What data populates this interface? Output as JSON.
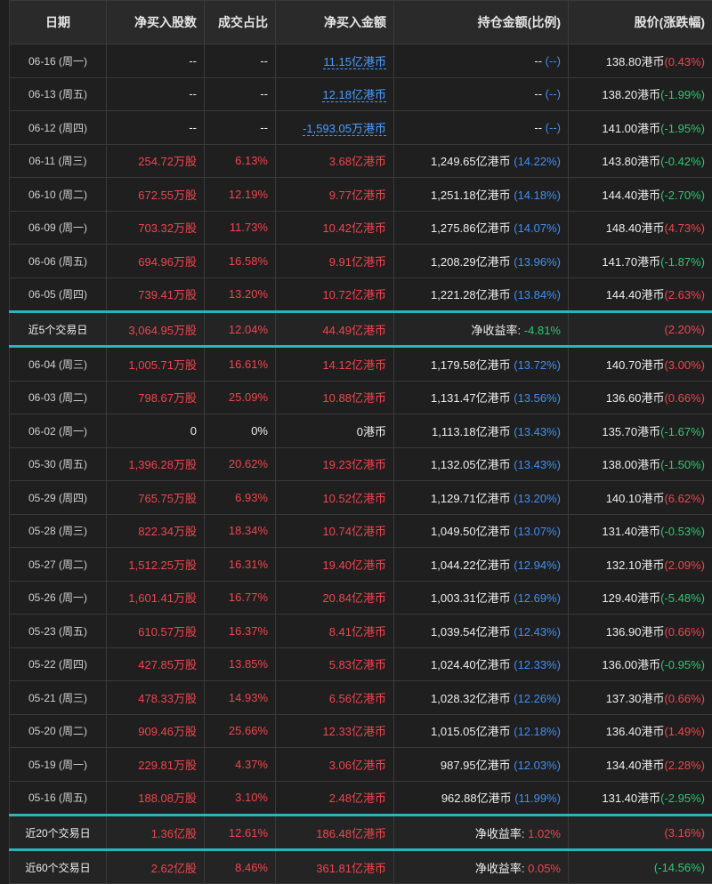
{
  "headers": [
    "日期",
    "净买入股数",
    "成交占比",
    "净买入金额",
    "持仓金额(比例)",
    "股价(涨跌幅)"
  ],
  "rows_a": [
    {
      "date": "06-16 (周一)",
      "shares": "--",
      "ratio": "--",
      "amount": "11.15亿港币",
      "amount_link": true,
      "hold": "--",
      "hold_pct": "(--)",
      "price": "138.80港币",
      "chg": "(0.43%)",
      "chg_dir": "up",
      "shares_dir": "none",
      "amount_dir": "none"
    },
    {
      "date": "06-13 (周五)",
      "shares": "--",
      "ratio": "--",
      "amount": "12.18亿港币",
      "amount_link": true,
      "hold": "--",
      "hold_pct": "(--)",
      "price": "138.20港币",
      "chg": "(-1.99%)",
      "chg_dir": "down",
      "shares_dir": "none",
      "amount_dir": "none"
    },
    {
      "date": "06-12 (周四)",
      "shares": "--",
      "ratio": "--",
      "amount": "-1,593.05万港币",
      "amount_link": true,
      "hold": "--",
      "hold_pct": "(--)",
      "price": "141.00港币",
      "chg": "(-1.95%)",
      "chg_dir": "down",
      "shares_dir": "none",
      "amount_dir": "none"
    },
    {
      "date": "06-11 (周三)",
      "shares": "254.72万股",
      "ratio": "6.13%",
      "amount": "3.68亿港币",
      "hold": "1,249.65亿港币",
      "hold_pct": "(14.22%)",
      "price": "143.80港币",
      "chg": "(-0.42%)",
      "chg_dir": "down",
      "shares_dir": "up",
      "amount_dir": "up"
    },
    {
      "date": "06-10 (周二)",
      "shares": "672.55万股",
      "ratio": "12.19%",
      "amount": "9.77亿港币",
      "hold": "1,251.18亿港币",
      "hold_pct": "(14.18%)",
      "price": "144.40港币",
      "chg": "(-2.70%)",
      "chg_dir": "down",
      "shares_dir": "up",
      "amount_dir": "up"
    },
    {
      "date": "06-09 (周一)",
      "shares": "703.32万股",
      "ratio": "11.73%",
      "amount": "10.42亿港币",
      "hold": "1,275.86亿港币",
      "hold_pct": "(14.07%)",
      "price": "148.40港币",
      "chg": "(4.73%)",
      "chg_dir": "up",
      "shares_dir": "up",
      "amount_dir": "up"
    },
    {
      "date": "06-06 (周五)",
      "shares": "694.96万股",
      "ratio": "16.58%",
      "amount": "9.91亿港币",
      "hold": "1,208.29亿港币",
      "hold_pct": "(13.96%)",
      "price": "141.70港币",
      "chg": "(-1.87%)",
      "chg_dir": "down",
      "shares_dir": "up",
      "amount_dir": "up"
    },
    {
      "date": "06-05 (周四)",
      "shares": "739.41万股",
      "ratio": "13.20%",
      "amount": "10.72亿港币",
      "hold": "1,221.28亿港币",
      "hold_pct": "(13.84%)",
      "price": "144.40港币",
      "chg": "(2.63%)",
      "chg_dir": "up",
      "shares_dir": "up",
      "amount_dir": "up"
    }
  ],
  "summary5": {
    "label": "近5个交易日",
    "shares": "3,064.95万股",
    "ratio": "12.04%",
    "amount": "44.49亿港币",
    "yield_label": "净收益率:",
    "yield": "-4.81%",
    "yield_dir": "down",
    "chg": "(2.20%)",
    "chg_dir": "up"
  },
  "rows_b": [
    {
      "date": "06-04 (周三)",
      "shares": "1,005.71万股",
      "ratio": "16.61%",
      "amount": "14.12亿港币",
      "hold": "1,179.58亿港币",
      "hold_pct": "(13.72%)",
      "price": "140.70港币",
      "chg": "(3.00%)",
      "chg_dir": "up",
      "shares_dir": "up",
      "amount_dir": "up"
    },
    {
      "date": "06-03 (周二)",
      "shares": "798.67万股",
      "ratio": "25.09%",
      "amount": "10.88亿港币",
      "hold": "1,131.47亿港币",
      "hold_pct": "(13.56%)",
      "price": "136.60港币",
      "chg": "(0.66%)",
      "chg_dir": "up",
      "shares_dir": "up",
      "amount_dir": "up"
    },
    {
      "date": "06-02 (周一)",
      "shares": "0",
      "ratio": "0%",
      "amount": "0港币",
      "hold": "1,113.18亿港币",
      "hold_pct": "(13.43%)",
      "price": "135.70港币",
      "chg": "(-1.67%)",
      "chg_dir": "down",
      "shares_dir": "none",
      "amount_dir": "none"
    },
    {
      "date": "05-30 (周五)",
      "shares": "1,396.28万股",
      "ratio": "20.62%",
      "amount": "19.23亿港币",
      "hold": "1,132.05亿港币",
      "hold_pct": "(13.43%)",
      "price": "138.00港币",
      "chg": "(-1.50%)",
      "chg_dir": "down",
      "shares_dir": "up",
      "amount_dir": "up"
    },
    {
      "date": "05-29 (周四)",
      "shares": "765.75万股",
      "ratio": "6.93%",
      "amount": "10.52亿港币",
      "hold": "1,129.71亿港币",
      "hold_pct": "(13.20%)",
      "price": "140.10港币",
      "chg": "(6.62%)",
      "chg_dir": "up",
      "shares_dir": "up",
      "amount_dir": "up"
    },
    {
      "date": "05-28 (周三)",
      "shares": "822.34万股",
      "ratio": "18.34%",
      "amount": "10.74亿港币",
      "hold": "1,049.50亿港币",
      "hold_pct": "(13.07%)",
      "price": "131.40港币",
      "chg": "(-0.53%)",
      "chg_dir": "down",
      "shares_dir": "up",
      "amount_dir": "up"
    },
    {
      "date": "05-27 (周二)",
      "shares": "1,512.25万股",
      "ratio": "16.31%",
      "amount": "19.40亿港币",
      "hold": "1,044.22亿港币",
      "hold_pct": "(12.94%)",
      "price": "132.10港币",
      "chg": "(2.09%)",
      "chg_dir": "up",
      "shares_dir": "up",
      "amount_dir": "up"
    },
    {
      "date": "05-26 (周一)",
      "shares": "1,601.41万股",
      "ratio": "16.77%",
      "amount": "20.84亿港币",
      "hold": "1,003.31亿港币",
      "hold_pct": "(12.69%)",
      "price": "129.40港币",
      "chg": "(-5.48%)",
      "chg_dir": "down",
      "shares_dir": "up",
      "amount_dir": "up"
    },
    {
      "date": "05-23 (周五)",
      "shares": "610.57万股",
      "ratio": "16.37%",
      "amount": "8.41亿港币",
      "hold": "1,039.54亿港币",
      "hold_pct": "(12.43%)",
      "price": "136.90港币",
      "chg": "(0.66%)",
      "chg_dir": "up",
      "shares_dir": "up",
      "amount_dir": "up"
    },
    {
      "date": "05-22 (周四)",
      "shares": "427.85万股",
      "ratio": "13.85%",
      "amount": "5.83亿港币",
      "hold": "1,024.40亿港币",
      "hold_pct": "(12.33%)",
      "price": "136.00港币",
      "chg": "(-0.95%)",
      "chg_dir": "down",
      "shares_dir": "up",
      "amount_dir": "up"
    },
    {
      "date": "05-21 (周三)",
      "shares": "478.33万股",
      "ratio": "14.93%",
      "amount": "6.56亿港币",
      "hold": "1,028.32亿港币",
      "hold_pct": "(12.26%)",
      "price": "137.30港币",
      "chg": "(0.66%)",
      "chg_dir": "up",
      "shares_dir": "up",
      "amount_dir": "up"
    },
    {
      "date": "05-20 (周二)",
      "shares": "909.46万股",
      "ratio": "25.66%",
      "amount": "12.33亿港币",
      "hold": "1,015.05亿港币",
      "hold_pct": "(12.18%)",
      "price": "136.40港币",
      "chg": "(1.49%)",
      "chg_dir": "up",
      "shares_dir": "up",
      "amount_dir": "up"
    },
    {
      "date": "05-19 (周一)",
      "shares": "229.81万股",
      "ratio": "4.37%",
      "amount": "3.06亿港币",
      "hold": "987.95亿港币",
      "hold_pct": "(12.03%)",
      "price": "134.40港币",
      "chg": "(2.28%)",
      "chg_dir": "up",
      "shares_dir": "up",
      "amount_dir": "up"
    },
    {
      "date": "05-16 (周五)",
      "shares": "188.08万股",
      "ratio": "3.10%",
      "amount": "2.48亿港币",
      "hold": "962.88亿港币",
      "hold_pct": "(11.99%)",
      "price": "131.40港币",
      "chg": "(-2.95%)",
      "chg_dir": "down",
      "shares_dir": "up",
      "amount_dir": "up"
    }
  ],
  "summary20": {
    "label": "近20个交易日",
    "shares": "1.36亿股",
    "ratio": "12.61%",
    "amount": "186.48亿港币",
    "yield_label": "净收益率:",
    "yield": "1.02%",
    "yield_dir": "up",
    "chg": "(3.16%)",
    "chg_dir": "up"
  },
  "summary60": {
    "label": "近60个交易日",
    "shares": "2.62亿股",
    "ratio": "8.46%",
    "amount": "361.81亿港币",
    "yield_label": "净收益率:",
    "yield": "0.05%",
    "yield_dir": "up",
    "chg": "(-14.56%)",
    "chg_dir": "down"
  },
  "colors": {
    "up": "#f0454f",
    "down": "#2ec873",
    "pct": "#3f8ff5",
    "separator": "#2bb3bf",
    "background": "#1f1f1f"
  }
}
